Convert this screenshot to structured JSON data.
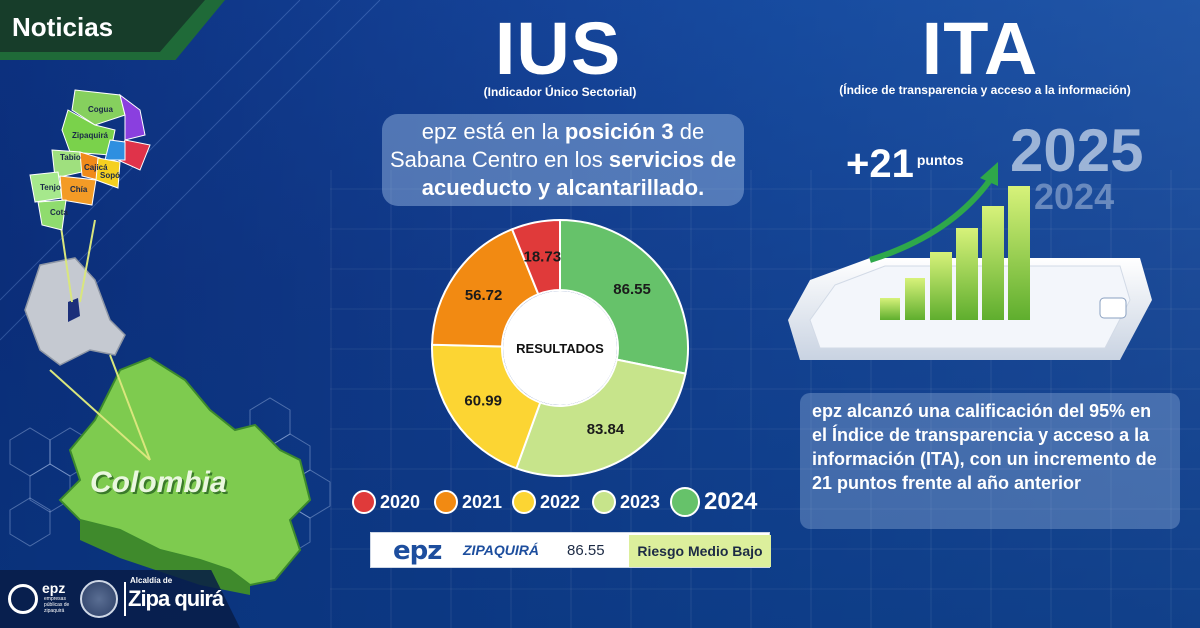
{
  "header": {
    "section_tag": "Noticias"
  },
  "ius": {
    "title": "IUS",
    "subtitle": "(Indicador Único Sectorial)",
    "statement_part1": "epz está en la ",
    "statement_bold1": "posición  3",
    "statement_part2": " de Sabana Centro en los ",
    "statement_bold2": "servicios de acueducto y alcantarillado."
  },
  "chart_data": {
    "type": "pie",
    "center_label": "RESULTADOS",
    "categories": [
      "2020",
      "2021",
      "2022",
      "2023",
      "2024"
    ],
    "values": [
      18.73,
      56.72,
      60.99,
      83.84,
      86.55
    ],
    "colors": [
      "#e03a3a",
      "#f28a12",
      "#fcd533",
      "#c7e48b",
      "#66c26a"
    ]
  },
  "legend": [
    {
      "label": "2020",
      "color": "#e03a3a"
    },
    {
      "label": "2021",
      "color": "#f28a12"
    },
    {
      "label": "2022",
      "color": "#fcd533"
    },
    {
      "label": "2023",
      "color": "#c7e48b"
    },
    {
      "label": "2024",
      "color": "#66c26a"
    }
  ],
  "result_bar": {
    "logo": "epz",
    "city": "ZIPAQUIRÁ",
    "score": "86.55",
    "risk": "Riesgo Medio Bajo"
  },
  "ita": {
    "title": "ITA",
    "subtitle": "(Índice de transparencia y acceso a la información)",
    "increase": "+21",
    "increase_unit": "puntos",
    "year_current": "2025",
    "year_previous": "2024",
    "statement": "epz alcanzó una calificación del 95% en el Índice de transparencia y acceso a la información (ITA), con un incremento de 21 puntos frente al año anterior"
  },
  "map": {
    "country_label": "Colombia",
    "municipalities": [
      "Cogua",
      "Zipaquirá",
      "Tabio",
      "Cajicá",
      "Sopó",
      "Tenjo",
      "Chía",
      "Cota"
    ]
  },
  "footer": {
    "epz_logo": "epz",
    "epz_subtitle": "empresas públicas de zipaquirá",
    "alcaldia_line1": "Alcaldía de",
    "alcaldia_line2": "Zipa quirá"
  }
}
